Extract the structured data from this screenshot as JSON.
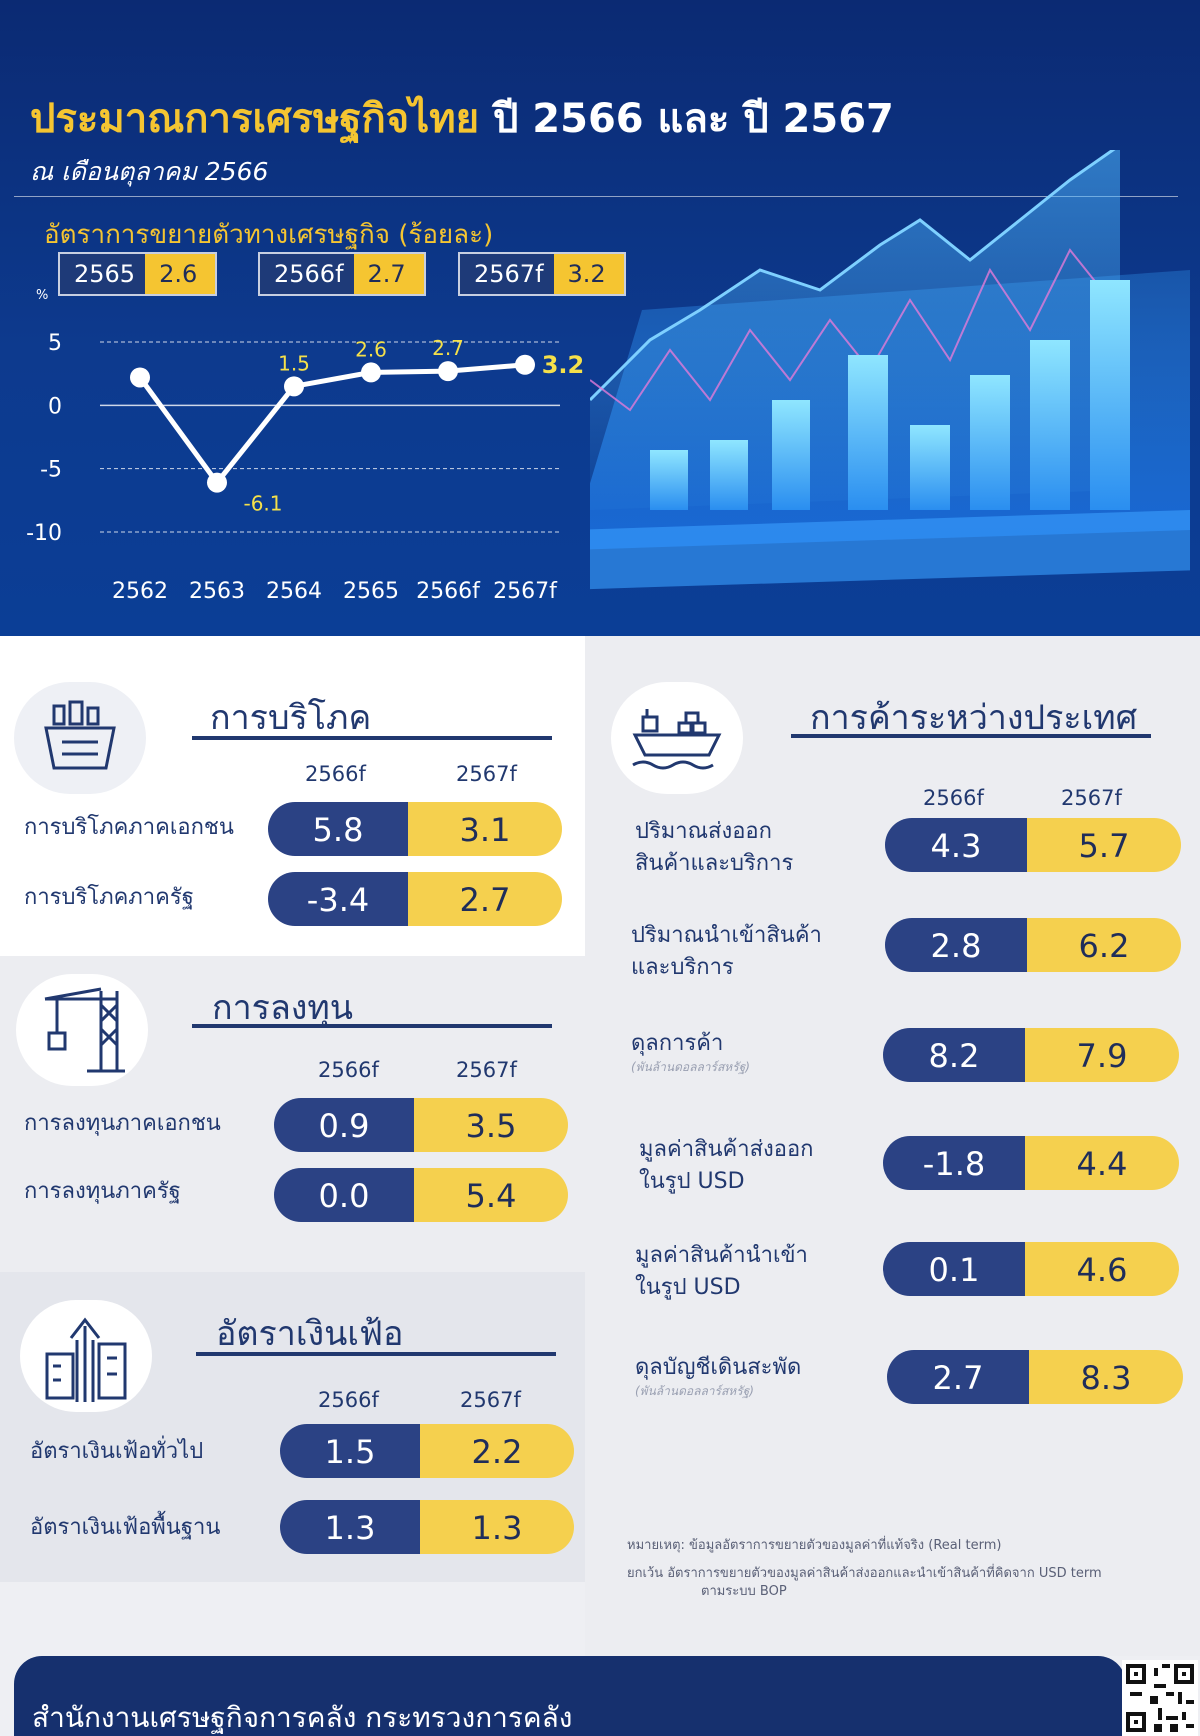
{
  "header": {
    "title": "ประมาณการเศรษฐกิจไทย",
    "title_years": "ปี 2566 และ ปี 2567",
    "subtitle": "ณ เดือนตุลาคม 2566",
    "growth_title": "อัตราการขยายตัวทางเศรษฐกิจ (ร้อยละ)",
    "growth_boxes": [
      {
        "year": "2565",
        "value": "2.6"
      },
      {
        "year": "2566f",
        "value": "2.7"
      },
      {
        "year": "2567f",
        "value": "3.2"
      }
    ],
    "unit": "%"
  },
  "chart_data": {
    "type": "line",
    "x": [
      "2562",
      "2563",
      "2564",
      "2565",
      "2566f",
      "2567f"
    ],
    "series": [
      {
        "values": [
          2.2,
          -6.1,
          1.5,
          2.6,
          2.7,
          3.2
        ]
      }
    ],
    "data_labels": [
      "",
      "-6.1",
      "1.5",
      "2.6",
      "2.7",
      "3.2"
    ],
    "y_ticks": [
      "5",
      "0",
      "-5",
      "-10"
    ],
    "ylim": [
      -10,
      5
    ],
    "grid": true,
    "colors": {
      "line": "#ffffff",
      "label": "#f5e04a",
      "axis_text": "#ffffff"
    }
  },
  "consumption": {
    "title": "การบริโภค",
    "col_2566": "2566f",
    "col_2567": "2567f",
    "rows": [
      {
        "label": "การบริโภคภาคเอกชน",
        "v2566": "5.8",
        "v2567": "3.1"
      },
      {
        "label": "การบริโภคภาครัฐ",
        "v2566": "-3.4",
        "v2567": "2.7"
      }
    ]
  },
  "investment": {
    "title": "การลงทุน",
    "col_2566": "2566f",
    "col_2567": "2567f",
    "rows": [
      {
        "label": "การลงทุนภาคเอกชน",
        "v2566": "0.9",
        "v2567": "3.5"
      },
      {
        "label": "การลงทุนภาครัฐ",
        "v2566": "0.0",
        "v2567": "5.4"
      }
    ]
  },
  "inflation": {
    "title": "อัตราเงินเฟ้อ",
    "col_2566": "2566f",
    "col_2567": "2567f",
    "rows": [
      {
        "label": "อัตราเงินเฟ้อทั่วไป",
        "v2566": "1.5",
        "v2567": "2.2"
      },
      {
        "label": "อัตราเงินเฟ้อพื้นฐาน",
        "v2566": "1.3",
        "v2567": "1.3"
      }
    ]
  },
  "trade": {
    "title": "การค้าระหว่างประเทศ",
    "col_2566": "2566f",
    "col_2567": "2567f",
    "rows": [
      {
        "label1": "ปริมาณส่งออก",
        "label2": "สินค้าและบริการ",
        "note": "",
        "v2566": "4.3",
        "v2567": "5.7"
      },
      {
        "label1": "ปริมาณนำเข้าสินค้า",
        "label2": "และบริการ",
        "note": "",
        "v2566": "2.8",
        "v2567": "6.2"
      },
      {
        "label1": "ดุลการค้า",
        "label2": "",
        "note": "(พันล้านดอลลาร์สหรัฐ)",
        "v2566": "8.2",
        "v2567": "7.9"
      },
      {
        "label1": "มูลค่าสินค้าส่งออก",
        "label2": "ในรูป USD",
        "note": "",
        "v2566": "-1.8",
        "v2567": "4.4"
      },
      {
        "label1": "มูลค่าสินค้านำเข้า",
        "label2": "ในรูป USD",
        "note": "",
        "v2566": "0.1",
        "v2567": "4.6"
      },
      {
        "label1": "ดุลบัญชีเดินสะพัด",
        "label2": "",
        "note": "(พันล้านดอลลาร์สหรัฐ)",
        "v2566": "2.7",
        "v2567": "8.3"
      }
    ]
  },
  "notes": {
    "line1": "หมายเหตุ: ข้อมูลอัตราการขยายตัวของมูลค่าที่แท้จริง (Real term)",
    "line2": "ยกเว้น อัตราการขยายตัวของมูลค่าสินค้าส่งออกและนำเข้าสินค้าที่คิดจาก USD term",
    "line3": "ตามระบบ BOP"
  },
  "footer": {
    "org": "สำนักงานเศรษฐกิจการคลัง กระทรวงการคลัง"
  },
  "colors": {
    "navy": "#2b4284",
    "yellow": "#f5d04e",
    "title_yellow": "#f5c531",
    "header_blue": "#0d3a8e"
  }
}
